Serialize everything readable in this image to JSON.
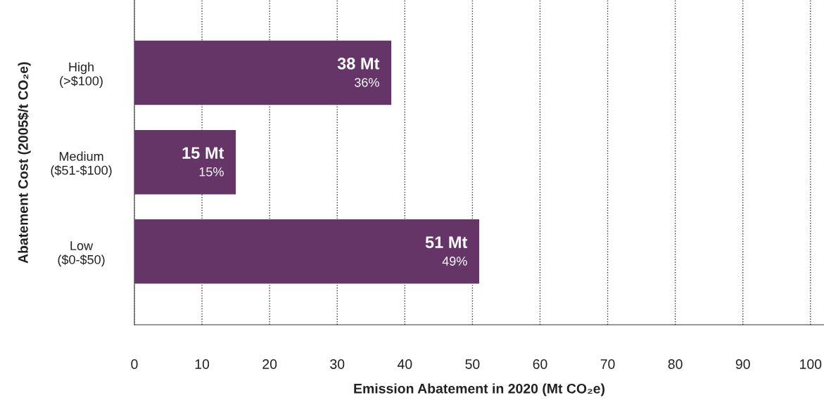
{
  "chart_data": {
    "type": "bar",
    "orientation": "horizontal",
    "xlabel": "Emission Abatement in 2020 (Mt CO₂e)",
    "ylabel": "Abatement Cost (2005$/t CO₂e)",
    "categories": [
      "High\n(>$100)",
      "Medium\n($51-$100)",
      "Low\n($0-$50)"
    ],
    "values": [
      38,
      15,
      51
    ],
    "color": "#643566",
    "value_labels": [
      "38 Mt\n36%",
      "15 Mt\n15%",
      "51 Mt\n49%"
    ],
    "xlim": [
      0,
      102
    ],
    "xticks": [
      0,
      10,
      20,
      30,
      40,
      50,
      60,
      70,
      80,
      90,
      100
    ],
    "grid": "x"
  }
}
